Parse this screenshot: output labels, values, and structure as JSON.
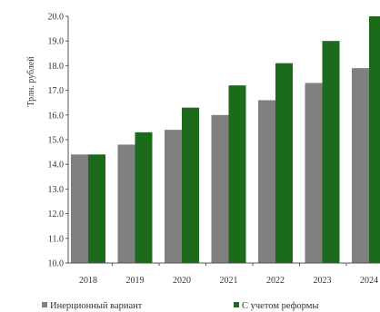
{
  "chart_data": {
    "type": "bar",
    "ylabel": "Трлн. рублей",
    "categories": [
      "2018",
      "2019",
      "2020",
      "2021",
      "2022",
      "2023",
      "2024"
    ],
    "series": [
      {
        "name": "Инерционный вариант",
        "values": [
          14.4,
          14.8,
          15.4,
          16.0,
          16.6,
          17.3,
          17.9
        ],
        "color": "#808080"
      },
      {
        "name": "С учетом реформы",
        "values": [
          14.4,
          15.3,
          16.3,
          17.2,
          18.1,
          19.0,
          20.0
        ],
        "color": "#1b6b1b"
      }
    ],
    "ylim": [
      10.0,
      20.0
    ],
    "yticks": [
      "10.0",
      "11.0",
      "12.0",
      "13.0",
      "14.0",
      "15.0",
      "16.0",
      "17.0",
      "18.0",
      "19.0",
      "20.0"
    ],
    "grid": false,
    "legend": "bottom"
  }
}
